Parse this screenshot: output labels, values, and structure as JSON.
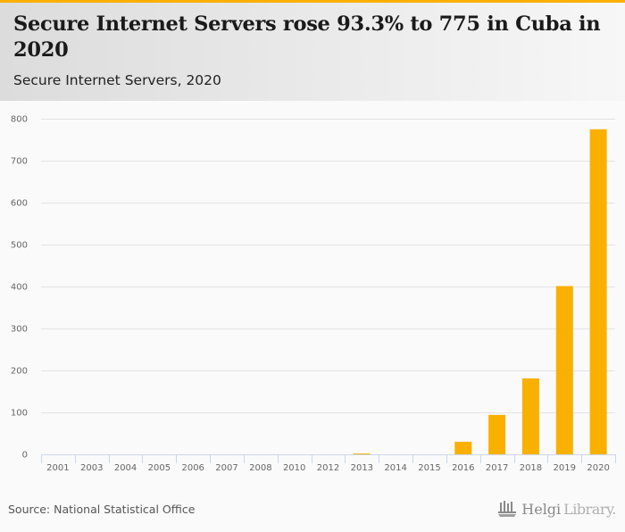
{
  "header": {
    "title": "Secure Internet Servers rose 93.3% to 775 in Cuba in 2020",
    "subtitle": "Secure Internet Servers, 2020"
  },
  "footer": {
    "source": "Source: National Statistical Office",
    "logo_bold": "Helgi",
    "logo_light": "Library."
  },
  "colors": {
    "accent": "#f9b000",
    "bar": "#f9b000",
    "grid": "#e3e3e3",
    "axis": "#ccd6eb"
  },
  "chart_data": {
    "type": "bar",
    "title": "Secure Internet Servers rose 93.3% to 775 in Cuba in 2020",
    "subtitle": "Secure Internet Servers, 2020",
    "xlabel": "",
    "ylabel": "",
    "categories": [
      "2001",
      "2003",
      "2004",
      "2005",
      "2006",
      "2007",
      "2008",
      "2010",
      "2012",
      "2013",
      "2014",
      "2015",
      "2016",
      "2017",
      "2018",
      "2019",
      "2020"
    ],
    "values": [
      0,
      0,
      0,
      0,
      0,
      0,
      0,
      0,
      0,
      2,
      0,
      0,
      30,
      94,
      181,
      401,
      775
    ],
    "ylim": [
      0,
      800
    ],
    "yticks": [
      0,
      100,
      200,
      300,
      400,
      500,
      600,
      700,
      800
    ],
    "grid": true,
    "legend": "none"
  }
}
